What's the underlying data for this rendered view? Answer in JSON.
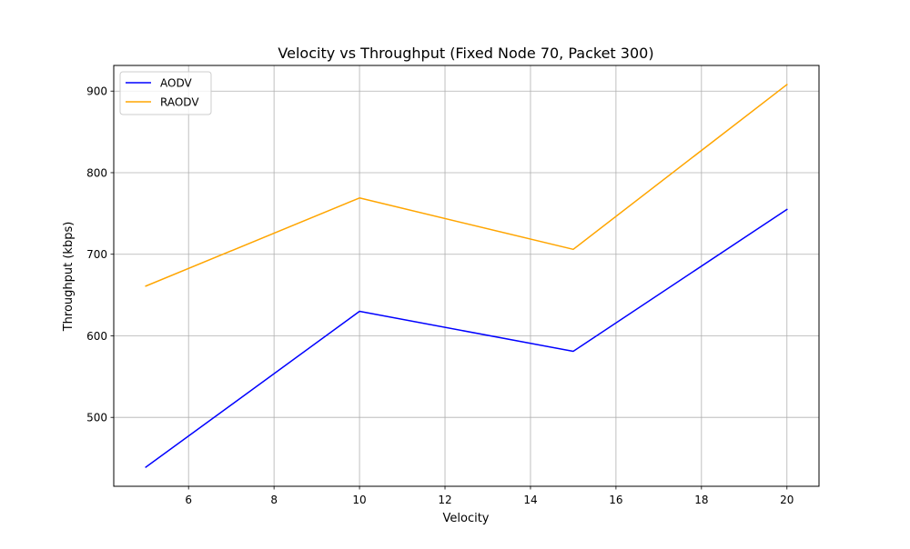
{
  "chart_data": {
    "type": "line",
    "title": "Velocity vs Throughput (Fixed Node 70, Packet 300)",
    "xlabel": "Velocity",
    "ylabel": "Throughput (kbps)",
    "x": [
      5,
      10,
      15,
      20
    ],
    "series": [
      {
        "name": "AODV",
        "color": "#0000ff",
        "values": [
          439,
          630,
          581,
          755
        ]
      },
      {
        "name": "RAODV",
        "color": "#ffa500",
        "values": [
          661,
          769,
          706,
          908
        ]
      }
    ],
    "xlim": [
      4.25,
      20.75
    ],
    "ylim": [
      415.55,
      931.45
    ],
    "xticks": [
      6,
      8,
      10,
      12,
      14,
      16,
      18,
      20
    ],
    "yticks": [
      500,
      600,
      700,
      800,
      900
    ],
    "grid": true,
    "grid_color": "#b0b0b0",
    "legend_placement": "top-left"
  }
}
